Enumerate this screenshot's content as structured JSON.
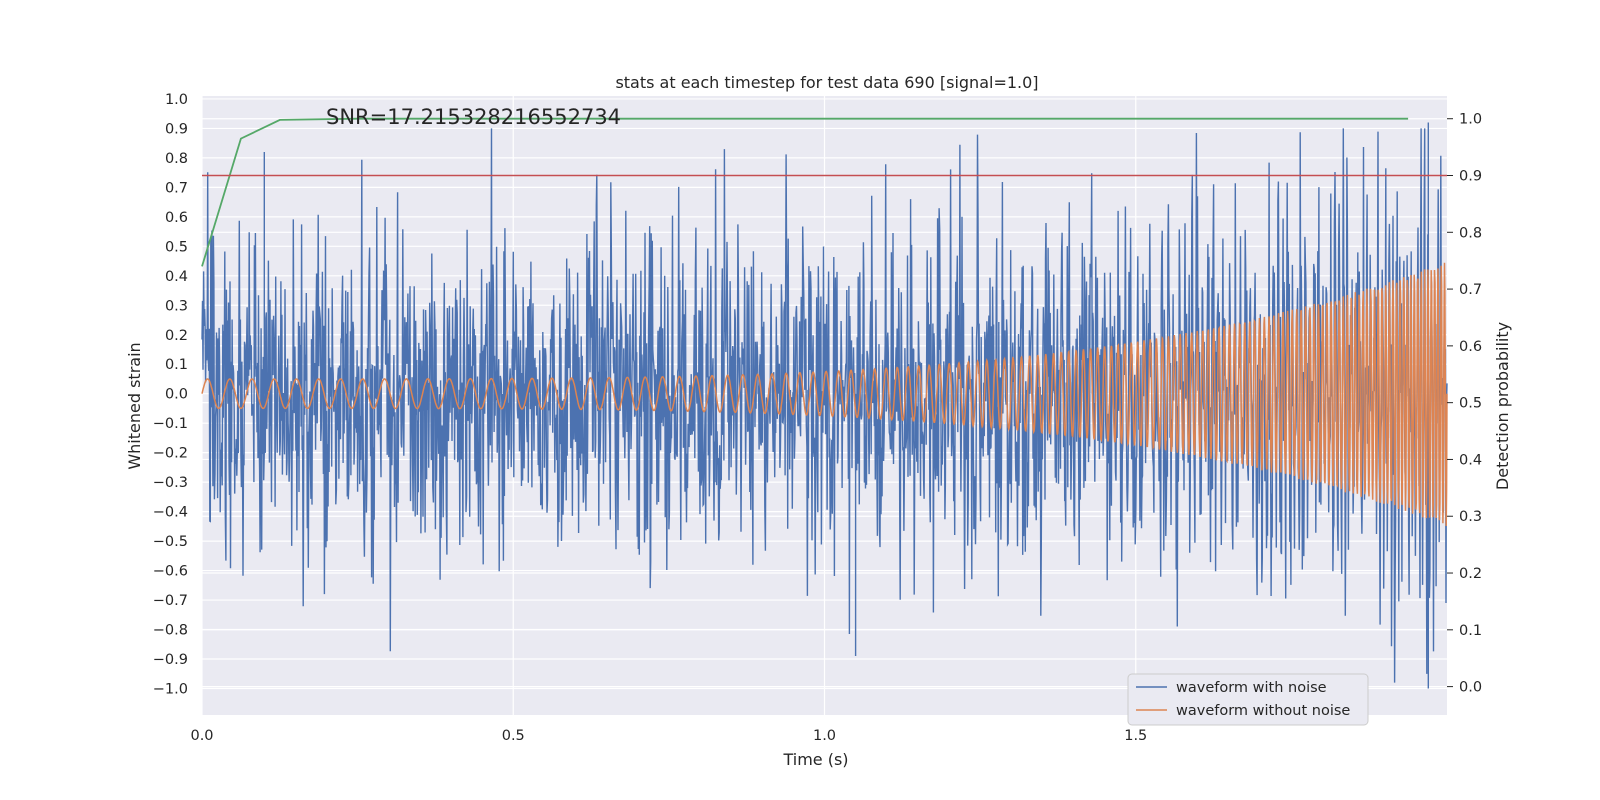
{
  "chart_data": {
    "type": "line",
    "title": "stats at each timestep for test data 690 [signal=1.0]",
    "annotation": "SNR=17.215328216552734",
    "xlabel": "Time (s)",
    "ylabel": "Whitened strain",
    "y2label": "Detection probability",
    "xlim": [
      0.0,
      2.0
    ],
    "ylim": [
      -1.09,
      1.01
    ],
    "y2lim": [
      -0.05,
      1.04
    ],
    "x_ticks": [
      0.0,
      0.5,
      1.0,
      1.5
    ],
    "x_tick_labels": [
      "0.0",
      "0.5",
      "1.0",
      "1.5"
    ],
    "y_ticks": [
      1.0,
      0.9,
      0.8,
      0.7,
      0.6,
      0.5,
      0.4,
      0.3,
      0.2,
      0.1,
      0.0,
      -0.1,
      -0.2,
      -0.3,
      -0.4,
      -0.5,
      -0.6,
      -0.7,
      -0.8,
      -0.9,
      -1.0
    ],
    "y_tick_labels": [
      "1.0",
      "0.9",
      "0.8",
      "0.7",
      "0.6",
      "0.5",
      "0.4",
      "0.3",
      "0.2",
      "0.1",
      "0.0",
      "−0.1",
      "−0.2",
      "−0.3",
      "−0.4",
      "−0.5",
      "−0.6",
      "−0.7",
      "−0.8",
      "−0.9",
      "−1.0"
    ],
    "y2_ticks": [
      1.0,
      0.9,
      0.8,
      0.7,
      0.6,
      0.5,
      0.4,
      0.3,
      0.2,
      0.1,
      0.0
    ],
    "y2_tick_labels": [
      "1.0",
      "0.9",
      "0.8",
      "0.7",
      "0.6",
      "0.5",
      "0.4",
      "0.3",
      "0.2",
      "0.1",
      "0.0"
    ],
    "grid": true,
    "background": "#eaeaf2",
    "legend_position": "lower right",
    "series": [
      {
        "name": "waveform with noise",
        "color": "#4c72b0",
        "axis": "left",
        "approx_amplitude_std": 0.27,
        "notable_points": [
          [
            0.1,
            0.82
          ],
          [
            1.05,
            -0.89
          ],
          [
            1.97,
            0.92
          ],
          [
            1.97,
            -1.0
          ]
        ]
      },
      {
        "name": "waveform without noise",
        "color": "#dd8452",
        "axis": "left",
        "chirp": {
          "amp_start": 0.05,
          "amp_end": 0.45,
          "freq_start_hz": 28,
          "freq_end_hz": 110,
          "x_end": 2.0
        }
      },
      {
        "color": "#55a868",
        "axis": "right",
        "x": [
          0.0,
          0.0625,
          0.125,
          0.25,
          0.5,
          0.75,
          1.0,
          1.25,
          1.5,
          1.75,
          1.9375
        ],
        "values": [
          0.74,
          0.965,
          0.998,
          1.0,
          1.0,
          1.0,
          1.0,
          1.0,
          1.0,
          1.0,
          1.0
        ]
      },
      {
        "color": "#c44e52",
        "axis": "right",
        "type": "hline",
        "values": [
          0.9
        ]
      }
    ]
  }
}
